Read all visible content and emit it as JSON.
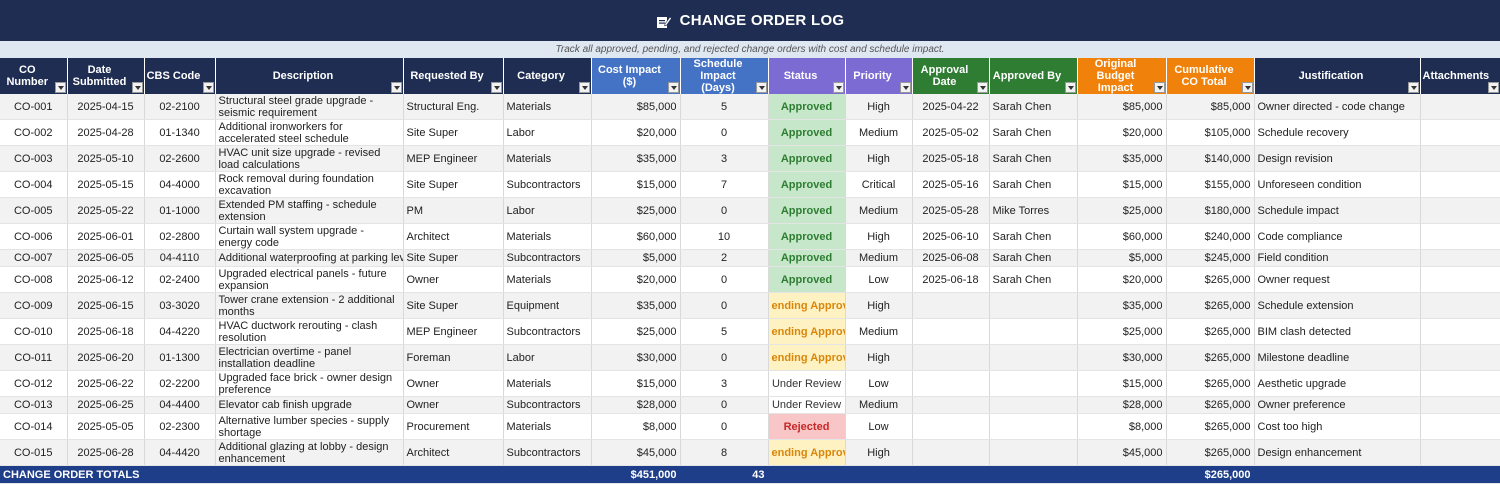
{
  "title": "CHANGE ORDER LOG",
  "title_icon": "edit-document-icon",
  "subtitle": "Track all approved, pending, and rejected change orders with cost and schedule impact.",
  "colors": {
    "title_bg": "#1f2d52",
    "header_blue": "#4472c4",
    "header_purple": "#7b6bd3",
    "header_green": "#2e7d32",
    "header_orange": "#f0820c",
    "approved": "#2e7d32",
    "pending": "#d9860a",
    "rejected": "#c62828"
  },
  "columns": [
    {
      "label": "CO Number",
      "color": "navy"
    },
    {
      "label": "Date Submitted",
      "color": "navy"
    },
    {
      "label": "CBS Code",
      "color": "navy"
    },
    {
      "label": "Description",
      "color": "navy"
    },
    {
      "label": "Requested By",
      "color": "navy"
    },
    {
      "label": "Category",
      "color": "navy"
    },
    {
      "label": "Cost Impact ($)",
      "color": "blue"
    },
    {
      "label": "Schedule Impact (Days)",
      "color": "blue"
    },
    {
      "label": "Status",
      "color": "purple"
    },
    {
      "label": "Priority",
      "color": "purple"
    },
    {
      "label": "Approval Date",
      "color": "green"
    },
    {
      "label": "Approved By",
      "color": "green"
    },
    {
      "label": "Original Budget Impact",
      "color": "orange"
    },
    {
      "label": "Cumulative CO Total",
      "color": "orange"
    },
    {
      "label": "Justification",
      "color": "navy"
    },
    {
      "label": "Attachments",
      "color": "navy"
    }
  ],
  "rows": [
    {
      "co": "CO-001",
      "date": "2025-04-15",
      "cbs": "02-2100",
      "desc": "Structural steel grade upgrade - seismic requirement",
      "req": "Structural Eng.",
      "cat": "Materials",
      "cost": "$85,000",
      "sched": "5",
      "status": "Approved",
      "status_type": "approved",
      "priority": "High",
      "appr_date": "2025-04-22",
      "appr_by": "Sarah Chen",
      "orig": "$85,000",
      "cum": "$85,000",
      "just": "Owner directed - code change",
      "att": ""
    },
    {
      "co": "CO-002",
      "date": "2025-04-28",
      "cbs": "01-1340",
      "desc": "Additional ironworkers for accelerated steel schedule",
      "req": "Site Super",
      "cat": "Labor",
      "cost": "$20,000",
      "sched": "0",
      "status": "Approved",
      "status_type": "approved",
      "priority": "Medium",
      "appr_date": "2025-05-02",
      "appr_by": "Sarah Chen",
      "orig": "$20,000",
      "cum": "$105,000",
      "just": "Schedule recovery",
      "att": ""
    },
    {
      "co": "CO-003",
      "date": "2025-05-10",
      "cbs": "02-2600",
      "desc": "HVAC unit size upgrade - revised load calculations",
      "req": "MEP Engineer",
      "cat": "Materials",
      "cost": "$35,000",
      "sched": "3",
      "status": "Approved",
      "status_type": "approved",
      "priority": "High",
      "appr_date": "2025-05-18",
      "appr_by": "Sarah Chen",
      "orig": "$35,000",
      "cum": "$140,000",
      "just": "Design revision",
      "att": ""
    },
    {
      "co": "CO-004",
      "date": "2025-05-15",
      "cbs": "04-4000",
      "desc": "Rock removal during foundation excavation",
      "req": "Site Super",
      "cat": "Subcontractors",
      "cost": "$15,000",
      "sched": "7",
      "status": "Approved",
      "status_type": "approved",
      "priority": "Critical",
      "appr_date": "2025-05-16",
      "appr_by": "Sarah Chen",
      "orig": "$15,000",
      "cum": "$155,000",
      "just": "Unforeseen condition",
      "att": ""
    },
    {
      "co": "CO-005",
      "date": "2025-05-22",
      "cbs": "01-1000",
      "desc": "Extended PM staffing - schedule extension",
      "req": "PM",
      "cat": "Labor",
      "cost": "$25,000",
      "sched": "0",
      "status": "Approved",
      "status_type": "approved",
      "priority": "Medium",
      "appr_date": "2025-05-28",
      "appr_by": "Mike Torres",
      "orig": "$25,000",
      "cum": "$180,000",
      "just": "Schedule impact",
      "att": ""
    },
    {
      "co": "CO-006",
      "date": "2025-06-01",
      "cbs": "02-2800",
      "desc": "Curtain wall system upgrade - energy code",
      "req": "Architect",
      "cat": "Materials",
      "cost": "$60,000",
      "sched": "10",
      "status": "Approved",
      "status_type": "approved",
      "priority": "High",
      "appr_date": "2025-06-10",
      "appr_by": "Sarah Chen",
      "orig": "$60,000",
      "cum": "$240,000",
      "just": "Code compliance",
      "att": ""
    },
    {
      "co": "CO-007",
      "date": "2025-06-05",
      "cbs": "04-4110",
      "desc": "Additional waterproofing at parking level",
      "req": "Site Super",
      "cat": "Subcontractors",
      "cost": "$5,000",
      "sched": "2",
      "status": "Approved",
      "status_type": "approved",
      "priority": "Medium",
      "appr_date": "2025-06-08",
      "appr_by": "Sarah Chen",
      "orig": "$5,000",
      "cum": "$245,000",
      "just": "Field condition",
      "att": ""
    },
    {
      "co": "CO-008",
      "date": "2025-06-12",
      "cbs": "02-2400",
      "desc": "Upgraded electrical panels - future expansion",
      "req": "Owner",
      "cat": "Materials",
      "cost": "$20,000",
      "sched": "0",
      "status": "Approved",
      "status_type": "approved",
      "priority": "Low",
      "appr_date": "2025-06-18",
      "appr_by": "Sarah Chen",
      "orig": "$20,000",
      "cum": "$265,000",
      "just": "Owner request",
      "att": ""
    },
    {
      "co": "CO-009",
      "date": "2025-06-15",
      "cbs": "03-3020",
      "desc": "Tower crane extension - 2 additional months",
      "req": "Site Super",
      "cat": "Equipment",
      "cost": "$35,000",
      "sched": "0",
      "status": "ending Approva",
      "status_type": "pending",
      "priority": "High",
      "appr_date": "",
      "appr_by": "",
      "orig": "$35,000",
      "cum": "$265,000",
      "just": "Schedule extension",
      "att": ""
    },
    {
      "co": "CO-010",
      "date": "2025-06-18",
      "cbs": "04-4220",
      "desc": "HVAC ductwork rerouting - clash resolution",
      "req": "MEP Engineer",
      "cat": "Subcontractors",
      "cost": "$25,000",
      "sched": "5",
      "status": "ending Approva",
      "status_type": "pending",
      "priority": "Medium",
      "appr_date": "",
      "appr_by": "",
      "orig": "$25,000",
      "cum": "$265,000",
      "just": "BIM clash detected",
      "att": ""
    },
    {
      "co": "CO-011",
      "date": "2025-06-20",
      "cbs": "01-1300",
      "desc": "Electrician overtime - panel installation deadline",
      "req": "Foreman",
      "cat": "Labor",
      "cost": "$30,000",
      "sched": "0",
      "status": "ending Approva",
      "status_type": "pending",
      "priority": "High",
      "appr_date": "",
      "appr_by": "",
      "orig": "$30,000",
      "cum": "$265,000",
      "just": "Milestone deadline",
      "att": ""
    },
    {
      "co": "CO-012",
      "date": "2025-06-22",
      "cbs": "02-2200",
      "desc": "Upgraded face brick - owner design preference",
      "req": "Owner",
      "cat": "Materials",
      "cost": "$15,000",
      "sched": "3",
      "status": "Under Review",
      "status_type": "review",
      "priority": "Low",
      "appr_date": "",
      "appr_by": "",
      "orig": "$15,000",
      "cum": "$265,000",
      "just": "Aesthetic upgrade",
      "att": ""
    },
    {
      "co": "CO-013",
      "date": "2025-06-25",
      "cbs": "04-4400",
      "desc": "Elevator cab finish upgrade",
      "req": "Owner",
      "cat": "Subcontractors",
      "cost": "$28,000",
      "sched": "0",
      "status": "Under Review",
      "status_type": "review",
      "priority": "Medium",
      "appr_date": "",
      "appr_by": "",
      "orig": "$28,000",
      "cum": "$265,000",
      "just": "Owner preference",
      "att": ""
    },
    {
      "co": "CO-014",
      "date": "2025-05-05",
      "cbs": "02-2300",
      "desc": "Alternative lumber species - supply shortage",
      "req": "Procurement",
      "cat": "Materials",
      "cost": "$8,000",
      "sched": "0",
      "status": "Rejected",
      "status_type": "rejected",
      "priority": "Low",
      "appr_date": "",
      "appr_by": "",
      "orig": "$8,000",
      "cum": "$265,000",
      "just": "Cost too high",
      "att": ""
    },
    {
      "co": "CO-015",
      "date": "2025-06-28",
      "cbs": "04-4420",
      "desc": "Additional glazing at lobby - design enhancement",
      "req": "Architect",
      "cat": "Subcontractors",
      "cost": "$45,000",
      "sched": "8",
      "status": "ending Approva",
      "status_type": "pending",
      "priority": "High",
      "appr_date": "",
      "appr_by": "",
      "orig": "$45,000",
      "cum": "$265,000",
      "just": "Design enhancement",
      "att": ""
    }
  ],
  "totals": {
    "label": "CHANGE ORDER TOTALS",
    "cost": "$451,000",
    "sched": "43",
    "cum": "$265,000"
  }
}
